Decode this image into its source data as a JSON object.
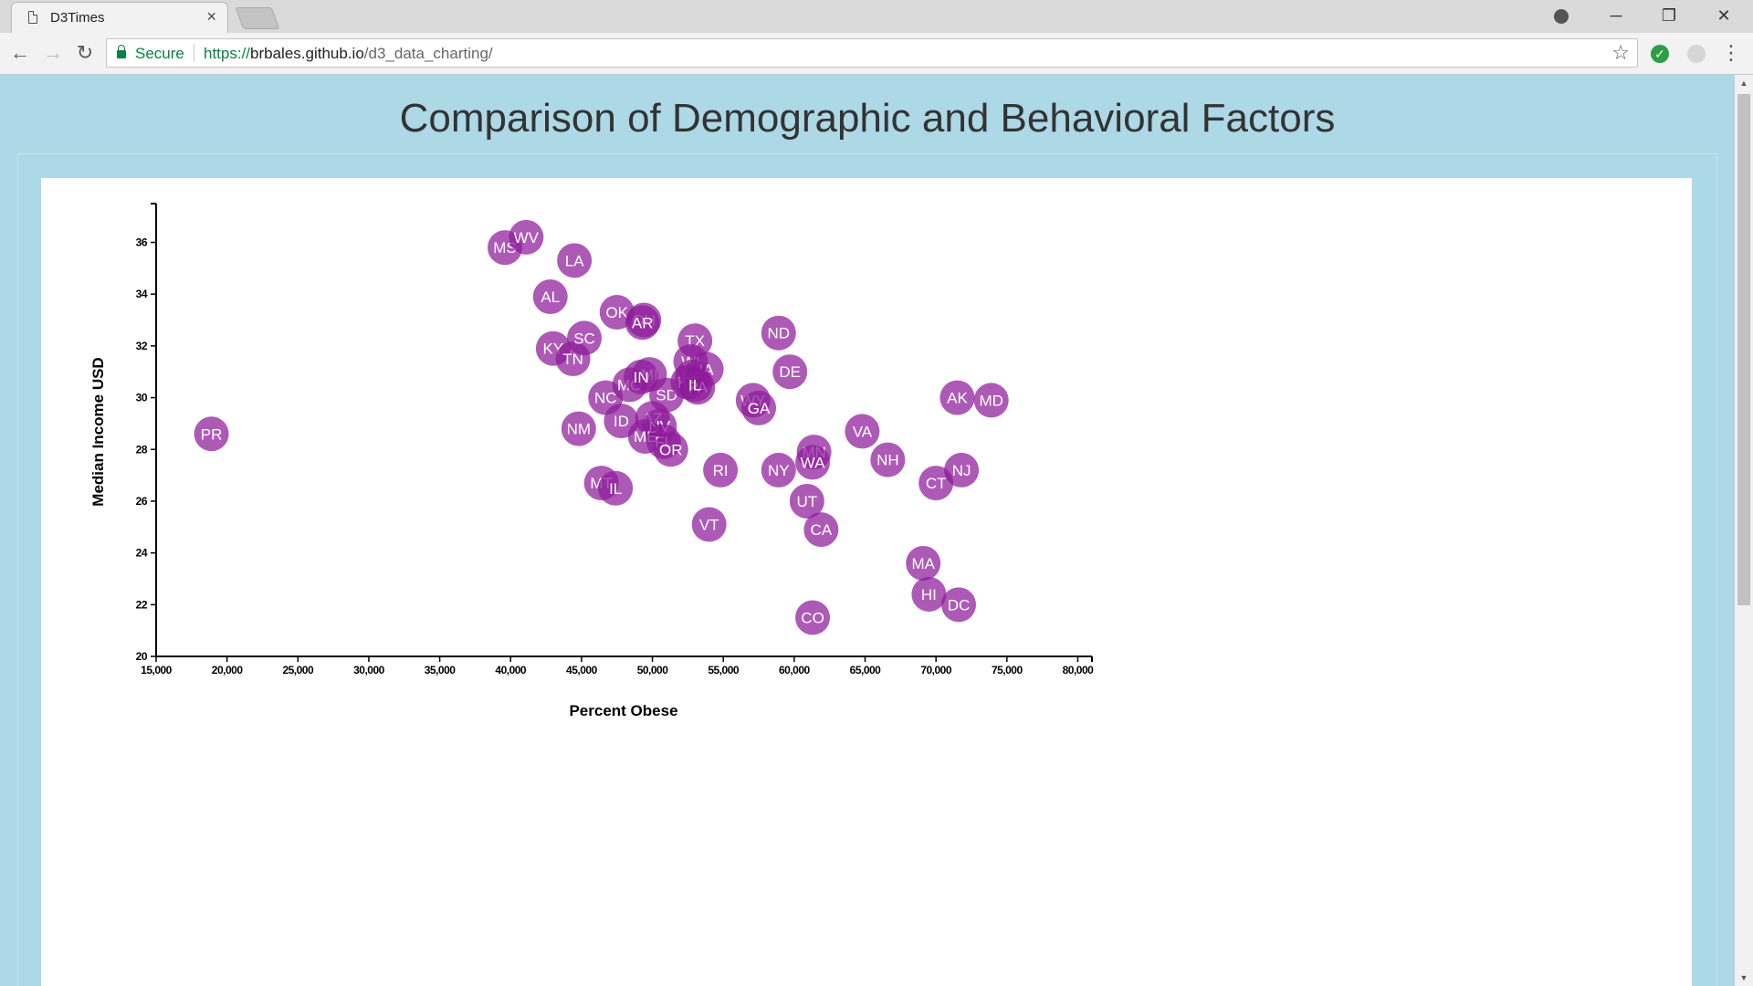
{
  "browser": {
    "tab_title": "D3Times",
    "tab_close": "×",
    "secure_label": "Secure",
    "url_scheme": "https://",
    "url_host": "brbales.github.io",
    "url_path": "/d3_data_charting/",
    "icons": [
      "document-icon",
      "close-icon",
      "profile-icon",
      "minimize-icon",
      "restore-icon",
      "window-close-icon",
      "back-icon",
      "forward-icon",
      "reload-icon",
      "lock-icon",
      "star-icon",
      "extension-check-icon",
      "extension-icon",
      "menu-icon"
    ]
  },
  "page": {
    "title": "Comparison of Demographic and Behavioral Factors"
  },
  "chart_data": {
    "type": "scatter",
    "title": "Comparison of Demographic and Behavioral Factors",
    "xlabel": "Percent Obese",
    "ylabel": "Median Income USD",
    "xlim": [
      15000,
      81000
    ],
    "ylim": [
      20,
      37.5
    ],
    "x_ticks": [
      15000,
      20000,
      25000,
      30000,
      35000,
      40000,
      45000,
      50000,
      55000,
      60000,
      65000,
      70000,
      75000,
      80000
    ],
    "y_ticks": [
      20,
      22,
      24,
      26,
      28,
      30,
      32,
      34,
      36
    ],
    "point_color": "#8e1a9a",
    "grid": false,
    "points": [
      {
        "label": "PR",
        "x": 18900,
        "y": 28.6
      },
      {
        "label": "MS",
        "x": 39600,
        "y": 35.8
      },
      {
        "label": "WV",
        "x": 41100,
        "y": 36.2
      },
      {
        "label": "LA",
        "x": 44500,
        "y": 35.3
      },
      {
        "label": "AL",
        "x": 42800,
        "y": 33.9
      },
      {
        "label": "KY",
        "x": 43000,
        "y": 31.9
      },
      {
        "label": "TN",
        "x": 44400,
        "y": 31.5
      },
      {
        "label": "SC",
        "x": 45200,
        "y": 32.3
      },
      {
        "label": "OK",
        "x": 47500,
        "y": 33.3
      },
      {
        "label": "OH",
        "x": 49400,
        "y": 33.0
      },
      {
        "label": "AR",
        "x": 49300,
        "y": 32.9
      },
      {
        "label": "NC",
        "x": 46700,
        "y": 30.0
      },
      {
        "label": "MO",
        "x": 48400,
        "y": 30.5
      },
      {
        "label": "MI",
        "x": 49800,
        "y": 30.9
      },
      {
        "label": "IN",
        "x": 49200,
        "y": 30.8
      },
      {
        "label": "SD",
        "x": 51000,
        "y": 30.1
      },
      {
        "label": "TX",
        "x": 53000,
        "y": 32.2
      },
      {
        "label": "WI",
        "x": 52700,
        "y": 31.4
      },
      {
        "label": "IA",
        "x": 53800,
        "y": 31.1
      },
      {
        "label": "NE",
        "x": 52800,
        "y": 30.8
      },
      {
        "label": "KS",
        "x": 52500,
        "y": 30.6
      },
      {
        "label": "PA",
        "x": 53200,
        "y": 30.4
      },
      {
        "label": "IL",
        "x": 53000,
        "y": 30.5
      },
      {
        "label": "ND",
        "x": 58900,
        "y": 32.5
      },
      {
        "label": "DE",
        "x": 59700,
        "y": 31.0
      },
      {
        "label": "WY",
        "x": 57100,
        "y": 29.9
      },
      {
        "label": "GA",
        "x": 57500,
        "y": 29.6
      },
      {
        "label": "NM",
        "x": 44800,
        "y": 28.8
      },
      {
        "label": "ID",
        "x": 47800,
        "y": 29.1
      },
      {
        "label": "AZ",
        "x": 50000,
        "y": 29.2
      },
      {
        "label": "NV",
        "x": 50500,
        "y": 28.9
      },
      {
        "label": "ME",
        "x": 49500,
        "y": 28.5
      },
      {
        "label": "FL",
        "x": 50800,
        "y": 28.3
      },
      {
        "label": "OR",
        "x": 51300,
        "y": 28.0
      },
      {
        "label": "MT",
        "x": 46400,
        "y": 26.7
      },
      {
        "label": "IL",
        "x": 47400,
        "y": 26.5
      },
      {
        "label": "RI",
        "x": 54800,
        "y": 27.2
      },
      {
        "label": "VT",
        "x": 54000,
        "y": 25.1
      },
      {
        "label": "NY",
        "x": 58900,
        "y": 27.2
      },
      {
        "label": "MN",
        "x": 61400,
        "y": 27.9
      },
      {
        "label": "WA",
        "x": 61300,
        "y": 27.5
      },
      {
        "label": "UT",
        "x": 60900,
        "y": 26.0
      },
      {
        "label": "CA",
        "x": 61900,
        "y": 24.9
      },
      {
        "label": "VA",
        "x": 64800,
        "y": 28.7
      },
      {
        "label": "NH",
        "x": 66600,
        "y": 27.6
      },
      {
        "label": "AK",
        "x": 71500,
        "y": 30.0
      },
      {
        "label": "MD",
        "x": 73900,
        "y": 29.9
      },
      {
        "label": "NJ",
        "x": 71800,
        "y": 27.2
      },
      {
        "label": "CT",
        "x": 70000,
        "y": 26.7
      },
      {
        "label": "MA",
        "x": 69100,
        "y": 23.6
      },
      {
        "label": "HI",
        "x": 69500,
        "y": 22.4
      },
      {
        "label": "DC",
        "x": 71600,
        "y": 22.0
      },
      {
        "label": "CO",
        "x": 61300,
        "y": 21.5
      }
    ]
  }
}
